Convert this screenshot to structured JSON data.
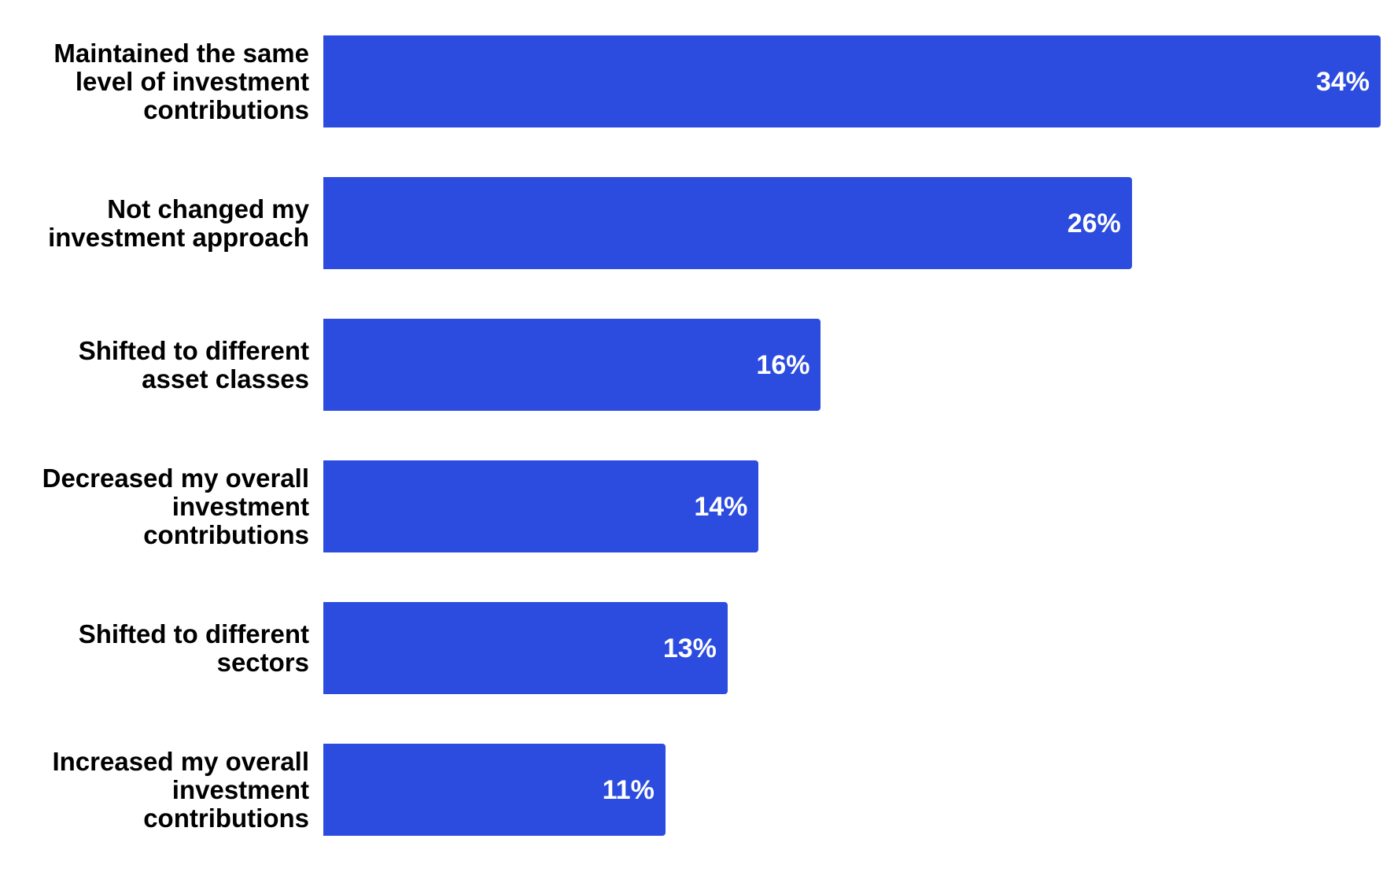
{
  "colors": {
    "bar": "#2c4cdf",
    "label_text": "#000000",
    "value_text": "#ffffff",
    "background": "#ffffff"
  },
  "chart_data": {
    "type": "bar",
    "orientation": "horizontal",
    "categories": [
      "Maintained the same\nlevel of investment\ncontributions",
      "Not changed my\ninvestment approach",
      "Shifted to different\nasset classes",
      "Decreased my overall\ninvestment\ncontributions",
      "Shifted to different\nsectors",
      "Increased my overall\ninvestment\ncontributions"
    ],
    "values": [
      34,
      26,
      16,
      14,
      13,
      11
    ],
    "value_labels": [
      "34%",
      "26%",
      "16%",
      "14%",
      "13%",
      "11%"
    ],
    "unit": "%",
    "xlim": [
      0,
      34
    ],
    "grid": false,
    "legend": "none"
  }
}
